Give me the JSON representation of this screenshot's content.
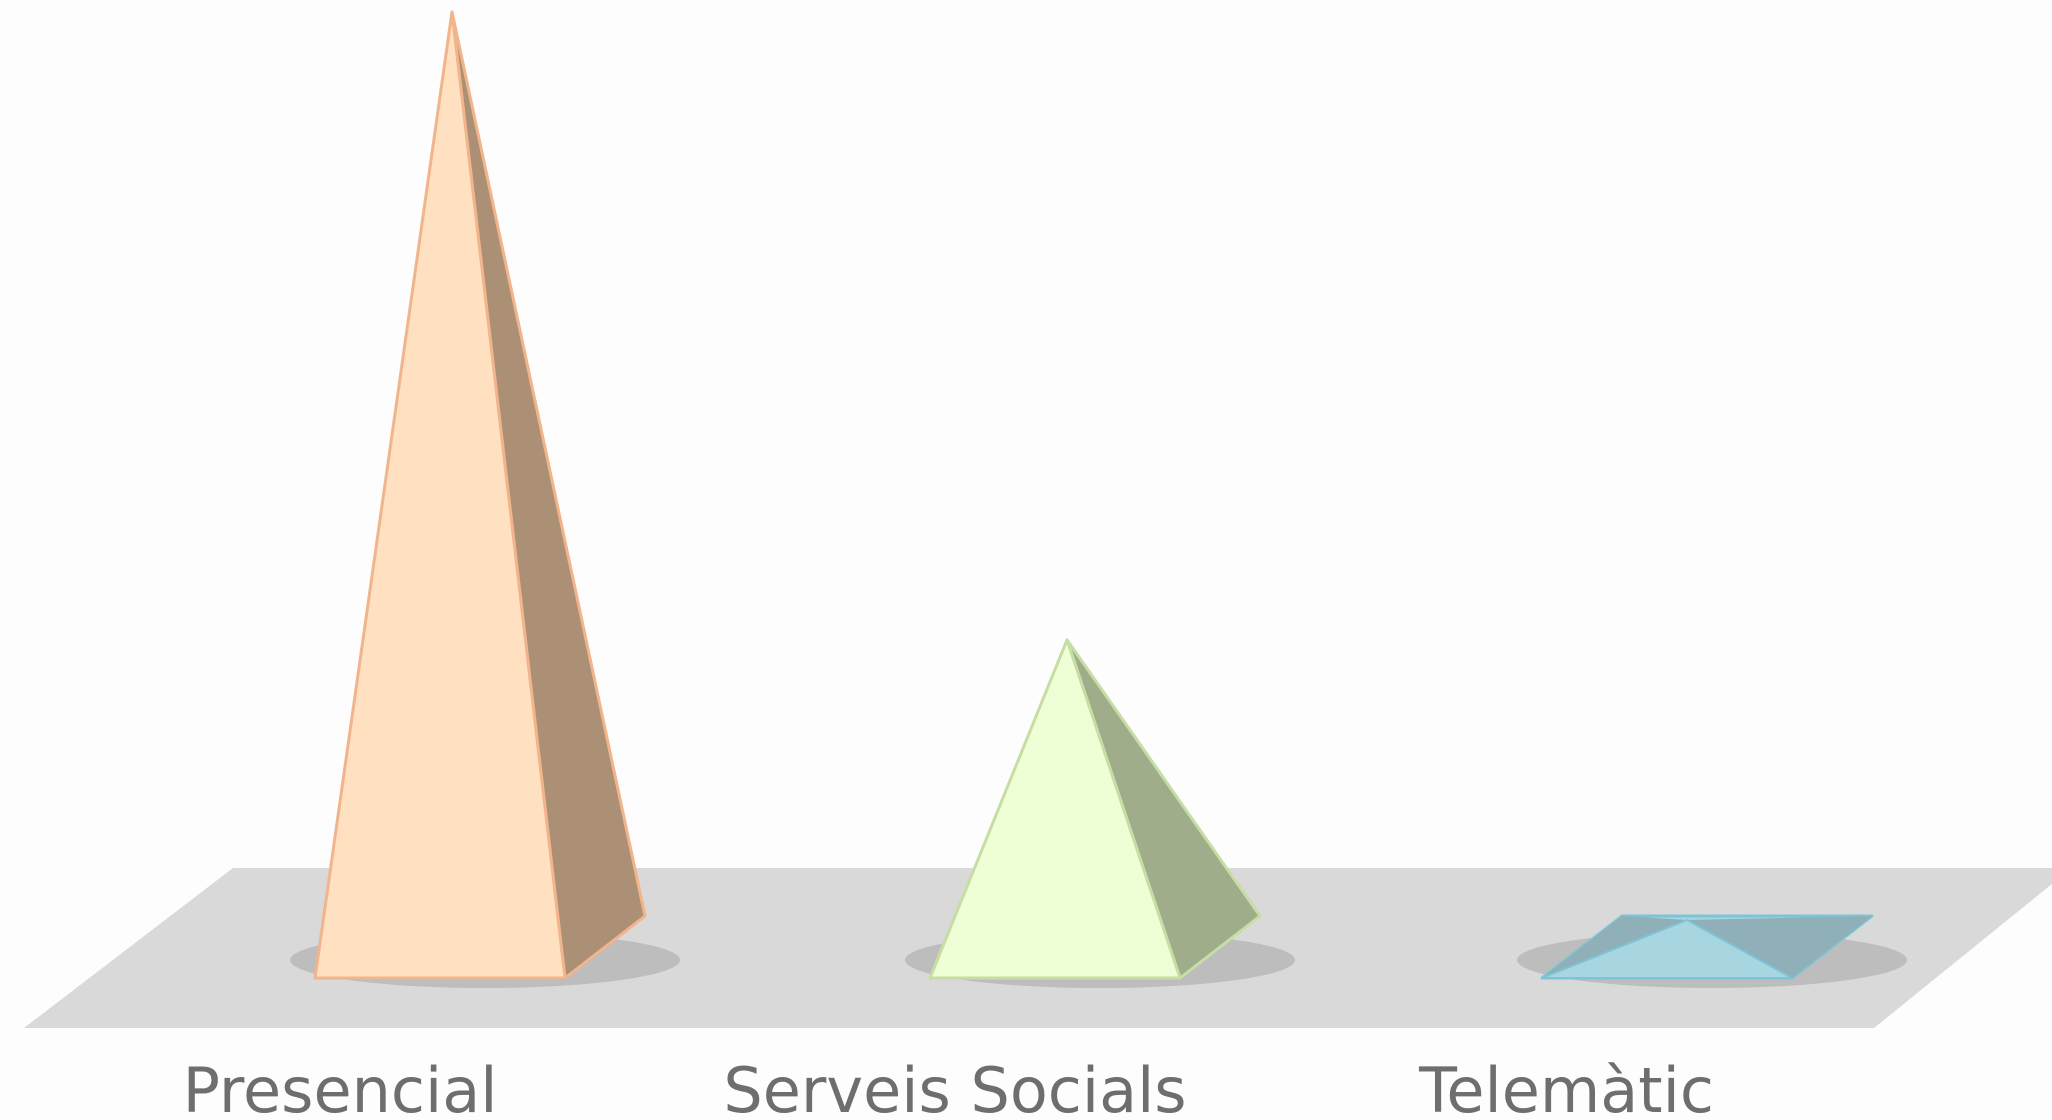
{
  "chart_data": {
    "type": "bar",
    "style": "3d-pyramid",
    "categories": [
      "Presencial",
      "Serveis Socials",
      "Telemàtic"
    ],
    "values": [
      100,
      35,
      0.5
    ],
    "title": "",
    "xlabel": "",
    "ylabel": "",
    "ylim": [
      0,
      100
    ],
    "grid": false,
    "legend": "none",
    "colors": {
      "front": [
        "#ffe0c1",
        "#eeffd6",
        "#a8d6e0"
      ],
      "side": [
        "#ac9075",
        "#a0ad8a",
        "#8fb0b8"
      ],
      "edge": [
        "#f2b48a",
        "#c6dea4",
        "#7dc4d6"
      ],
      "floor": "#d9d9d9",
      "label": "#6e6e6e",
      "background": "#fdfdfd"
    }
  }
}
